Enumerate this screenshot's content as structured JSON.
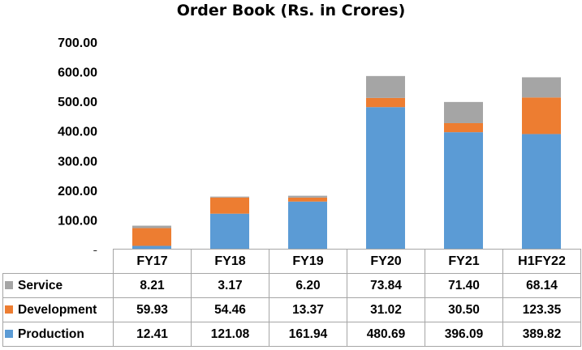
{
  "chart_data": {
    "type": "bar",
    "stacked": true,
    "title": "Order Book (Rs. in Crores)",
    "categories": [
      "FY17",
      "FY18",
      "FY19",
      "FY20",
      "FY21",
      "H1FY22"
    ],
    "ylim": [
      0,
      700
    ],
    "yticks": [
      "-",
      "100.00",
      "200.00",
      "300.00",
      "400.00",
      "500.00",
      "600.00",
      "700.00"
    ],
    "legend_placement": "data table rows",
    "grid": false,
    "series": [
      {
        "name": "Production",
        "color": "#5b9bd5",
        "values": [
          12.41,
          121.08,
          161.94,
          480.69,
          396.09,
          389.82
        ],
        "labels": [
          "12.41",
          "121.08",
          "161.94",
          "480.69",
          "396.09",
          "389.82"
        ]
      },
      {
        "name": "Development",
        "color": "#ed7d31",
        "values": [
          59.93,
          54.46,
          13.37,
          31.02,
          30.5,
          123.35
        ],
        "labels": [
          "59.93",
          "54.46",
          "13.37",
          "31.02",
          "30.50",
          "123.35"
        ]
      },
      {
        "name": "Service",
        "color": "#a5a5a5",
        "values": [
          8.21,
          3.17,
          6.2,
          73.84,
          71.4,
          68.14
        ],
        "labels": [
          "8.21",
          "3.17",
          "6.20",
          "73.84",
          "71.40",
          "68.14"
        ]
      }
    ],
    "table_row_order": [
      "Service",
      "Development",
      "Production"
    ]
  }
}
